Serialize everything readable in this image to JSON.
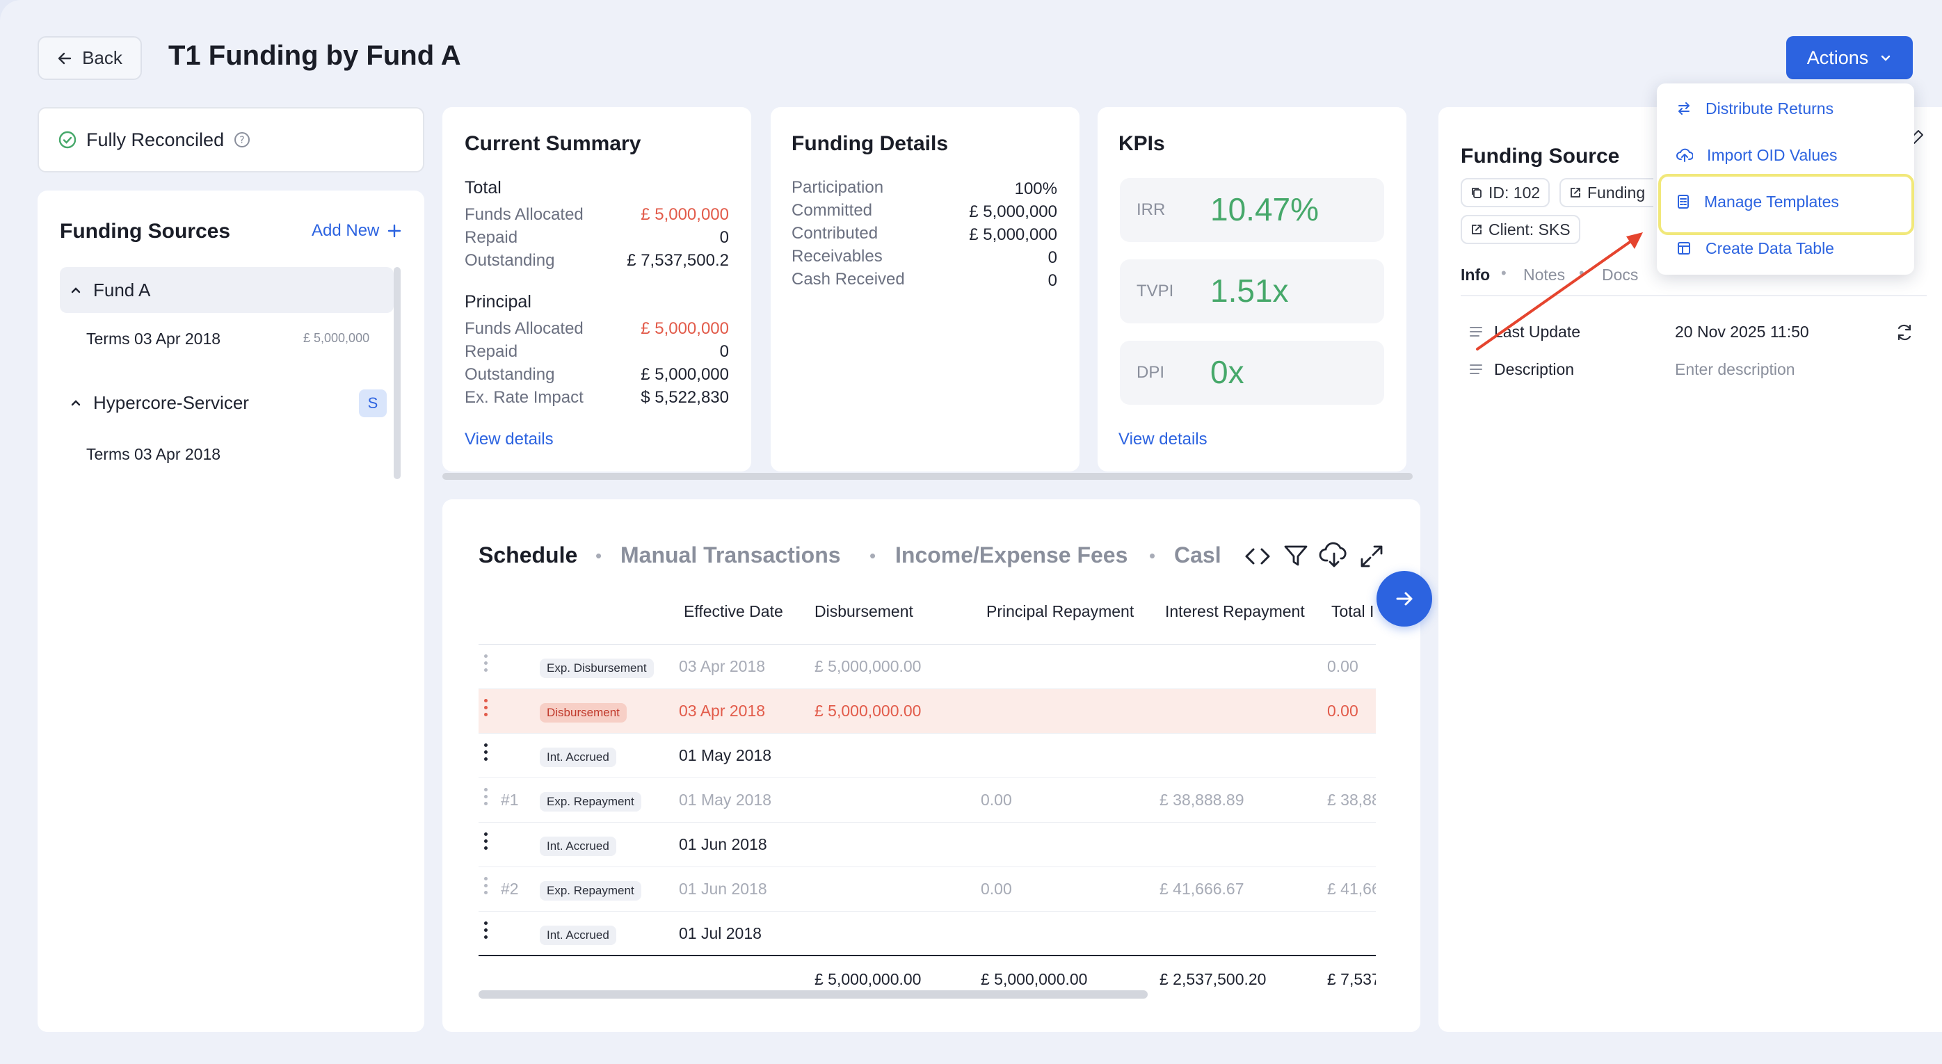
{
  "header": {
    "back_label": "Back",
    "title": "T1 Funding by Fund A",
    "actions_label": "Actions"
  },
  "status": {
    "label": "Fully Reconciled"
  },
  "funding_sources": {
    "title": "Funding Sources",
    "add_new": "Add New",
    "groups": [
      {
        "name": "Fund A",
        "terms": [
          {
            "label": "Terms 03 Apr 2018",
            "amount": "£ 5,000,000"
          }
        ]
      },
      {
        "name": "Hypercore-Servicer",
        "badge": "S",
        "terms": [
          {
            "label": "Terms 03 Apr 2018"
          }
        ]
      }
    ]
  },
  "current_summary": {
    "title": "Current Summary",
    "total_heading": "Total",
    "total": [
      {
        "label": "Funds Allocated",
        "value": "£ 5,000,000"
      },
      {
        "label": "Repaid",
        "value": "0"
      },
      {
        "label": "Outstanding",
        "value": "£ 7,537,500.2"
      }
    ],
    "principal_heading": "Principal",
    "principal": [
      {
        "label": "Funds Allocated",
        "value": "£ 5,000,000"
      },
      {
        "label": "Repaid",
        "value": "0"
      },
      {
        "label": "Outstanding",
        "value": "£ 5,000,000"
      },
      {
        "label": "Ex. Rate Impact",
        "value": "$ 5,522,830"
      }
    ],
    "view_details": "View details"
  },
  "funding_details": {
    "title": "Funding Details",
    "rows": [
      {
        "label": "Participation",
        "value": "100%"
      },
      {
        "label": "Committed",
        "value": "£ 5,000,000"
      },
      {
        "label": "Contributed",
        "value": "£ 5,000,000"
      },
      {
        "label": "Receivables",
        "value": "0"
      },
      {
        "label": "Cash Received",
        "value": "0"
      }
    ]
  },
  "kpis": {
    "title": "KPIs",
    "items": [
      {
        "label": "IRR",
        "value": "10.47%"
      },
      {
        "label": "TVPI",
        "value": "1.51x"
      },
      {
        "label": "DPI",
        "value": "0x"
      }
    ],
    "view_details": "View details"
  },
  "schedule": {
    "tabs": [
      "Schedule",
      "Manual Transactions",
      "Income/Expense Fees",
      "Casl"
    ],
    "columns": [
      "Effective Date",
      "Disbursement",
      "Principal Repayment",
      "Interest Repayment",
      "Total I"
    ],
    "rows": [
      {
        "num": "",
        "type": "Exp. Disbursement",
        "date": "03 Apr 2018",
        "disb": "£ 5,000,000.00",
        "prin": "",
        "int": "",
        "total": "0.00"
      },
      {
        "num": "",
        "type": "Disbursement",
        "date": "03 Apr 2018",
        "disb": "£ 5,000,000.00",
        "prin": "",
        "int": "",
        "total": "0.00"
      },
      {
        "num": "",
        "type": "Int. Accrued",
        "date": "01 May 2018",
        "disb": "",
        "prin": "",
        "int": "",
        "total": ""
      },
      {
        "num": "#1",
        "type": "Exp. Repayment",
        "date": "01 May 2018",
        "disb": "",
        "prin": "0.00",
        "int": "£ 38,888.89",
        "total": "£ 38,88"
      },
      {
        "num": "",
        "type": "Int. Accrued",
        "date": "01 Jun 2018",
        "disb": "",
        "prin": "",
        "int": "",
        "total": ""
      },
      {
        "num": "#2",
        "type": "Exp. Repayment",
        "date": "01 Jun 2018",
        "disb": "",
        "prin": "0.00",
        "int": "£ 41,666.67",
        "total": "£ 41,66"
      },
      {
        "num": "",
        "type": "Int. Accrued",
        "date": "01 Jul 2018",
        "disb": "",
        "prin": "",
        "int": "",
        "total": ""
      }
    ],
    "totals": {
      "disb": "£ 5,000,000.00",
      "prin": "£ 5,000,000.00",
      "int": "£ 2,537,500.20",
      "total": "£ 7,537"
    }
  },
  "funding_source_panel": {
    "title": "Funding Source",
    "id_chip": "ID: 102",
    "funding_chip": "Funding",
    "client_chip": "Client: SKS",
    "tabs": [
      "Info",
      "Notes",
      "Docs"
    ],
    "last_update_label": "Last Update",
    "last_update_value": "20 Nov 2025 11:50",
    "description_label": "Description",
    "description_placeholder": "Enter description"
  },
  "actions_menu": {
    "items": [
      "Distribute Returns",
      "Import OID Values",
      "Manage Templates",
      "Create Data Table"
    ]
  },
  "colors": {
    "accent": "#2c63e0",
    "positive": "#46a86a",
    "negative": "#e25b4a",
    "highlight": "#f1e87a"
  }
}
